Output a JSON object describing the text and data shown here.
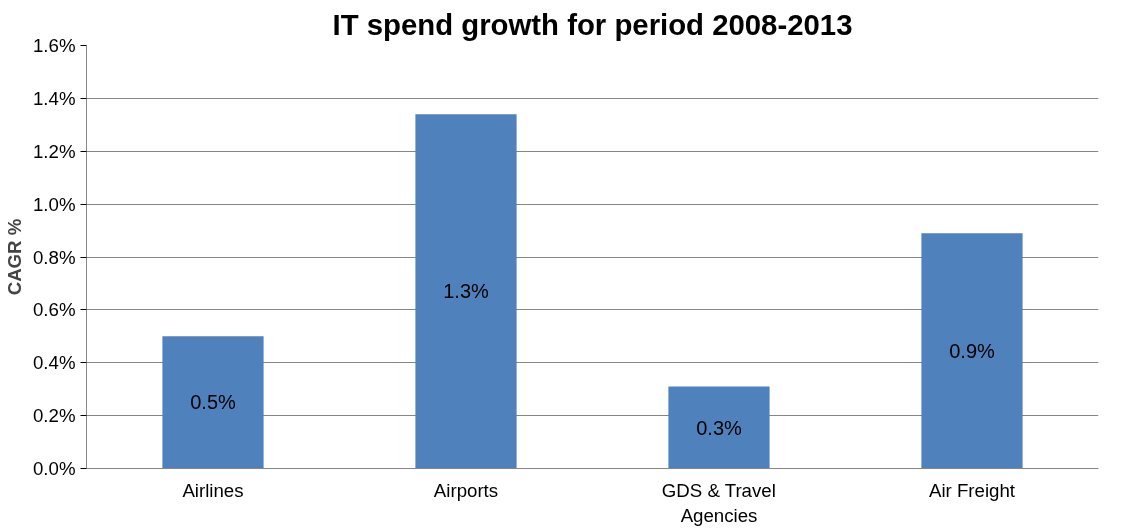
{
  "chart_data": {
    "type": "bar",
    "title": "IT spend growth for period 2008-2013",
    "ylabel": "CAGR %",
    "categories": [
      "Airlines",
      "Airports",
      "GDS & Travel Agencies",
      "Air Freight"
    ],
    "values": [
      0.5,
      1.34,
      0.31,
      0.89
    ],
    "value_labels": [
      "0.5%",
      "1.3%",
      "0.3%",
      "0.9%"
    ],
    "color": "#4f81bd",
    "ylim": [
      0,
      1.6
    ],
    "yticks": [
      {
        "value": 0,
        "label": "0.0%"
      },
      {
        "value": 0.2,
        "label": "0.2%"
      },
      {
        "value": 0.4,
        "label": "0.4%"
      },
      {
        "value": 0.6,
        "label": "0.6%"
      },
      {
        "value": 0.8,
        "label": "0.8%"
      },
      {
        "value": 1.0,
        "label": "1.0%"
      },
      {
        "value": 1.2,
        "label": "1.2%"
      },
      {
        "value": 1.4,
        "label": "1.4%"
      },
      {
        "value": 1.6,
        "label": "1.6%"
      }
    ],
    "grid": "y"
  }
}
